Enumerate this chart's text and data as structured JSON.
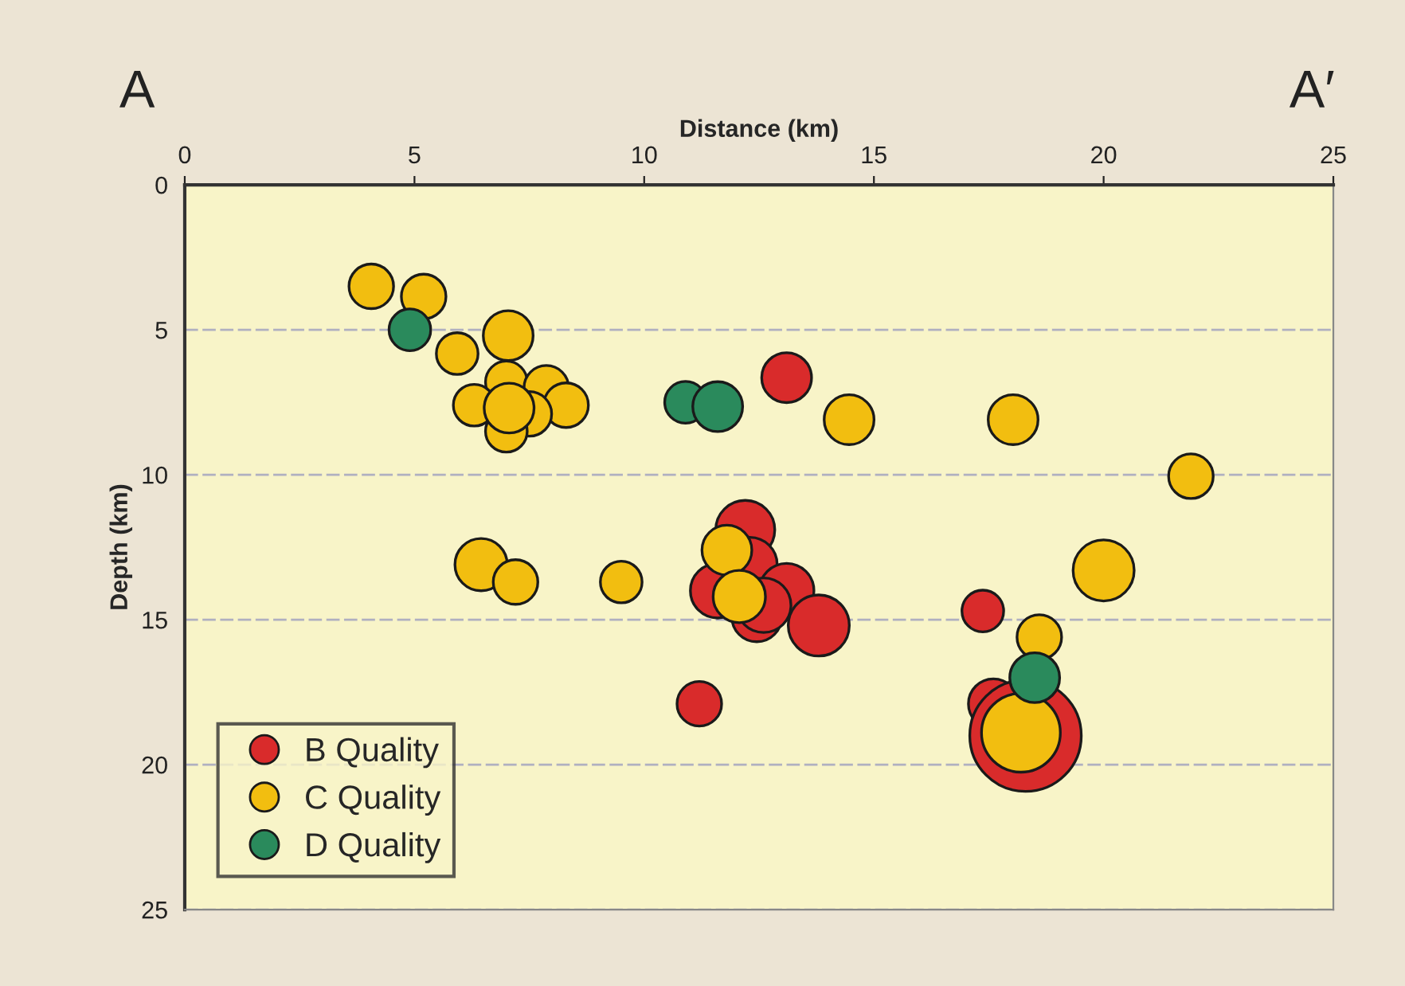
{
  "chart_data": {
    "type": "bubble",
    "xlabel": "Distance (km)",
    "ylabel": "Depth (km)",
    "annotations": [
      "A",
      "A′"
    ],
    "xlim": [
      0,
      25
    ],
    "xticks": [
      0,
      5,
      10,
      15,
      20,
      25
    ],
    "ylim": [
      25,
      0
    ],
    "yticks": [
      0,
      5,
      10,
      15,
      20,
      25
    ],
    "grid": "y",
    "legend": "bottom left",
    "series": [
      {
        "name": "B Quality",
        "color": "#d92b2b",
        "x": [
          13.1,
          12.2,
          12.3,
          11.6,
          12.45,
          13.1,
          12.6,
          13.8,
          17.37,
          11.2,
          17.6,
          18.3
        ],
        "values": [
          6.65,
          11.9,
          13.1,
          14.0,
          14.9,
          14.0,
          14.5,
          15.2,
          14.7,
          17.9,
          17.9,
          19.0
        ],
        "sizes": [
          0.2,
          0.28,
          0.24,
          0.24,
          0.2,
          0.24,
          0.24,
          0.3,
          0.14,
          0.16,
          0.2,
          1
        ]
      },
      {
        "name": "C Quality",
        "color": "#f2be10",
        "x": [
          4.06,
          5.2,
          5.93,
          7.04,
          7.0,
          7.87,
          6.3,
          8.3,
          7.5,
          7.0,
          7.06,
          14.46,
          18.03,
          21.9,
          6.45,
          7.2,
          9.5,
          11.8,
          12.07,
          20.0,
          18.6,
          18.2
        ],
        "values": [
          3.5,
          3.85,
          5.82,
          5.2,
          6.8,
          7.0,
          7.6,
          7.6,
          7.9,
          8.5,
          7.7,
          8.1,
          8.1,
          10.05,
          13.1,
          13.7,
          13.7,
          12.6,
          14.2,
          13.3,
          15.6,
          18.9
        ],
        "sizes": [
          0.16,
          0.16,
          0.14,
          0.2,
          0.14,
          0.16,
          0.14,
          0.16,
          0.16,
          0.14,
          0.2,
          0.2,
          0.2,
          0.16,
          0.22,
          0.16,
          0.14,
          0.2,
          0.22,
          0.3,
          0.16,
          0.5
        ]
      },
      {
        "name": "D Quality",
        "color": "#2a8a5c",
        "x": [
          4.9,
          10.9,
          11.6,
          18.5
        ],
        "values": [
          5.0,
          7.5,
          7.65,
          17.0
        ],
        "sizes": [
          0.14,
          0.14,
          0.2,
          0.2
        ]
      }
    ]
  }
}
